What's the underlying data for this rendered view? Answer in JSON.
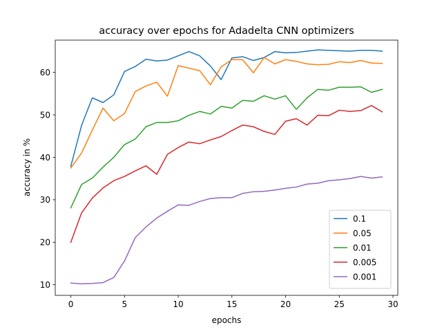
{
  "chart_data": {
    "type": "line",
    "title": "accuracy over epochs for Adadelta CNN optimizers",
    "xlabel": "epochs",
    "ylabel": "accuracy in %",
    "xlim": [
      -1.45,
      30.45
    ],
    "ylim": [
      7.5,
      67.6
    ],
    "xticks": [
      0,
      5,
      10,
      15,
      20,
      25,
      30
    ],
    "yticks": [
      10,
      20,
      30,
      40,
      50,
      60
    ],
    "grid": false,
    "legend_position": "lower-right",
    "x": [
      0,
      1,
      2,
      3,
      4,
      5,
      6,
      7,
      8,
      9,
      10,
      11,
      12,
      13,
      14,
      15,
      16,
      17,
      18,
      19,
      20,
      21,
      22,
      23,
      24,
      25,
      26,
      27,
      28,
      29
    ],
    "series": [
      {
        "name": "0.1",
        "color": "#1f77b4",
        "values": [
          37.9,
          47.5,
          54.0,
          52.9,
          54.7,
          60.2,
          61.4,
          63.1,
          62.7,
          62.9,
          63.9,
          64.9,
          63.9,
          61.5,
          58.3,
          63.4,
          63.7,
          62.8,
          63.5,
          64.9,
          64.6,
          64.7,
          65.0,
          65.3,
          65.2,
          65.1,
          65.0,
          65.2,
          65.2,
          65.0
        ]
      },
      {
        "name": "0.05",
        "color": "#ff7f0e",
        "values": [
          37.5,
          41.0,
          46.4,
          51.6,
          48.6,
          50.3,
          55.5,
          56.8,
          57.7,
          54.4,
          61.6,
          61.0,
          60.4,
          57.1,
          61.3,
          63.0,
          63.0,
          59.9,
          63.5,
          62.0,
          63.0,
          62.6,
          62.0,
          61.8,
          61.9,
          62.5,
          62.3,
          62.8,
          62.2,
          62.1
        ]
      },
      {
        "name": "0.01",
        "color": "#2ca02c",
        "values": [
          28.1,
          33.6,
          35.1,
          37.7,
          40.0,
          43.0,
          44.3,
          47.2,
          48.2,
          48.2,
          48.6,
          49.9,
          50.8,
          50.2,
          52.0,
          51.6,
          53.4,
          53.2,
          54.5,
          53.7,
          54.5,
          51.3,
          54.0,
          56.0,
          55.8,
          56.5,
          56.5,
          56.6,
          55.3,
          56.0
        ]
      },
      {
        "name": "0.005",
        "color": "#d62728",
        "values": [
          20.0,
          26.9,
          30.4,
          32.8,
          34.5,
          35.5,
          36.8,
          38.0,
          36.0,
          40.7,
          42.3,
          43.6,
          43.2,
          44.1,
          44.9,
          46.3,
          47.6,
          47.2,
          46.1,
          45.4,
          48.5,
          49.1,
          47.6,
          49.9,
          49.8,
          51.1,
          50.8,
          51.0,
          52.2,
          50.7
        ]
      },
      {
        "name": "0.001",
        "color": "#9467bd",
        "values": [
          10.4,
          10.2,
          10.3,
          10.5,
          11.7,
          15.6,
          21.1,
          23.6,
          25.7,
          27.3,
          28.8,
          28.7,
          29.6,
          30.3,
          30.5,
          30.5,
          31.5,
          31.9,
          32.0,
          32.3,
          32.7,
          33.0,
          33.7,
          33.9,
          34.5,
          34.7,
          35.0,
          35.5,
          35.1,
          35.4
        ]
      }
    ]
  }
}
